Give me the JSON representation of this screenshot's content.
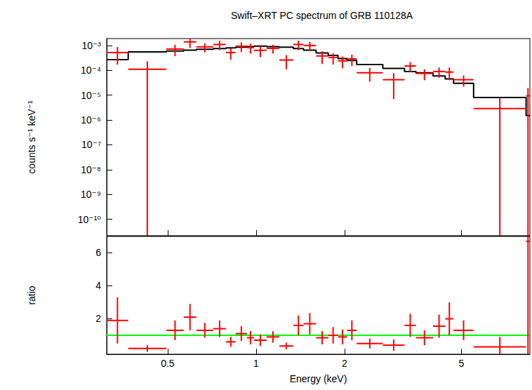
{
  "chart_data": [
    {
      "type": "scatter",
      "title": "Swift–XRT PC spectrum of GRB 110128A",
      "y_label": "counts s⁻¹ keV⁻¹",
      "log": true,
      "grid": false,
      "tick_labels": "y",
      "xlim": [
        0.31,
        8.55
      ],
      "xticks": [
        0.5,
        1,
        2,
        5
      ],
      "ylim": [
        2.2e-11,
        0.0019
      ],
      "yticks": [
        {
          "value": 1e-10,
          "label": "10⁻¹⁰"
        },
        {
          "value": 1e-09,
          "label": "10⁻⁹"
        },
        {
          "value": 1e-08,
          "label": "10⁻⁸"
        },
        {
          "value": 1e-07,
          "label": "10⁻⁷"
        },
        {
          "value": 1e-06,
          "label": "10⁻⁶"
        },
        {
          "value": 1e-05,
          "label": "10⁻⁵"
        },
        {
          "value": 0.0001,
          "label": "10⁻⁴"
        },
        {
          "value": 0.001,
          "label": "10⁻³"
        }
      ],
      "x_low": [
        0.31,
        0.367,
        0.495,
        0.567,
        0.626,
        0.715,
        0.789,
        0.852,
        0.931,
        0.984,
        1.086,
        1.199,
        1.339,
        1.45,
        1.6,
        1.76,
        1.9,
        2.04,
        2.2,
        2.7,
        3.2,
        3.5,
        4.0,
        4.4,
        4.7,
        5.5,
        8.3
      ],
      "x_high": [
        0.367,
        0.495,
        0.567,
        0.626,
        0.715,
        0.789,
        0.852,
        0.931,
        0.984,
        1.086,
        1.199,
        1.339,
        1.45,
        1.6,
        1.76,
        1.9,
        2.04,
        2.2,
        2.7,
        3.2,
        3.5,
        4.0,
        4.4,
        4.7,
        5.5,
        8.3,
        8.55
      ],
      "series": [
        {
          "type": "errorbar",
          "color": "#ff0000",
          "values": [
            0.00052,
            0.00011,
            0.00072,
            0.0014,
            0.00088,
            0.0011,
            0.00052,
            0.00094,
            0.00082,
            0.00064,
            0.00077,
            0.00026,
            0.0011,
            0.001,
            0.00038,
            0.00033,
            0.00024,
            0.00029,
            8e-05,
            4.2e-05,
            0.00015,
            7.5e-05,
            9e-05,
            8.5e-05,
            4.2e-05,
            2.9e-06,
            9.4e-06
          ],
          "y_err": [
            0.00035,
            0.00012,
            0.00035,
            0.0006,
            0.00035,
            0.00045,
            0.00025,
            0.0004,
            0.00035,
            0.0003,
            0.0003,
            0.00015,
            0.00045,
            0.0004,
            0.0002,
            0.00016,
            0.00012,
            0.00014,
            4.5e-05,
            3.5e-05,
            6.5e-05,
            3.5e-05,
            4e-05,
            4.5e-05,
            2e-05,
            5e-06,
            1e-05
          ]
        },
        {
          "type": "step",
          "color": "#000000",
          "values": [
            0.00027,
            0.00055,
            0.0006,
            0.00065,
            0.0007,
            0.00075,
            0.0008,
            0.00085,
            0.0009,
            0.00095,
            0.0009,
            0.00085,
            0.00075,
            0.00065,
            0.0005,
            0.0004,
            0.0003,
            0.00025,
            0.00017,
            0.00012,
            9e-05,
            8e-05,
            6e-05,
            4.5e-05,
            3e-05,
            8e-06,
            1.5e-06
          ]
        }
      ]
    },
    {
      "type": "scatter",
      "x_label": "Energy (keV)",
      "y_label": "ratio",
      "log": "x",
      "grid": false,
      "xlim": [
        0.31,
        8.55
      ],
      "xticks": [
        0.5,
        1,
        2,
        5
      ],
      "ylim": [
        -0.15,
        7
      ],
      "yticks": [
        2,
        4,
        6
      ],
      "x_low": [
        0.31,
        0.367,
        0.495,
        0.567,
        0.626,
        0.715,
        0.789,
        0.852,
        0.931,
        0.984,
        1.086,
        1.199,
        1.339,
        1.45,
        1.6,
        1.76,
        1.9,
        2.04,
        2.2,
        2.7,
        3.2,
        3.5,
        4.0,
        4.4,
        4.7,
        5.5,
        8.3
      ],
      "x_high": [
        0.367,
        0.495,
        0.567,
        0.626,
        0.715,
        0.789,
        0.852,
        0.931,
        0.984,
        1.086,
        1.199,
        1.339,
        1.45,
        1.6,
        1.76,
        1.9,
        2.04,
        2.2,
        2.7,
        3.2,
        3.5,
        4.0,
        4.4,
        4.7,
        5.5,
        8.3,
        8.55
      ],
      "hline": {
        "value": 1,
        "color": "#00ff00"
      },
      "series": [
        {
          "type": "errorbar",
          "color": "#ff0000",
          "values": [
            1.9,
            0.2,
            1.3,
            2.1,
            1.3,
            1.4,
            0.6,
            1.1,
            0.85,
            0.7,
            0.9,
            0.35,
            1.6,
            1.7,
            0.85,
            1.0,
            0.9,
            1.3,
            0.5,
            0.4,
            1.6,
            0.85,
            1.55,
            2.0,
            1.3,
            0.3,
            6.7
          ],
          "y_err": [
            1.4,
            0.2,
            0.6,
            0.8,
            0.45,
            0.5,
            0.3,
            0.45,
            0.4,
            0.35,
            0.35,
            0.2,
            0.6,
            0.65,
            0.4,
            0.5,
            0.45,
            0.6,
            0.3,
            0.35,
            0.7,
            0.45,
            0.7,
            1.0,
            0.6,
            0.6,
            7.0
          ]
        }
      ]
    }
  ]
}
